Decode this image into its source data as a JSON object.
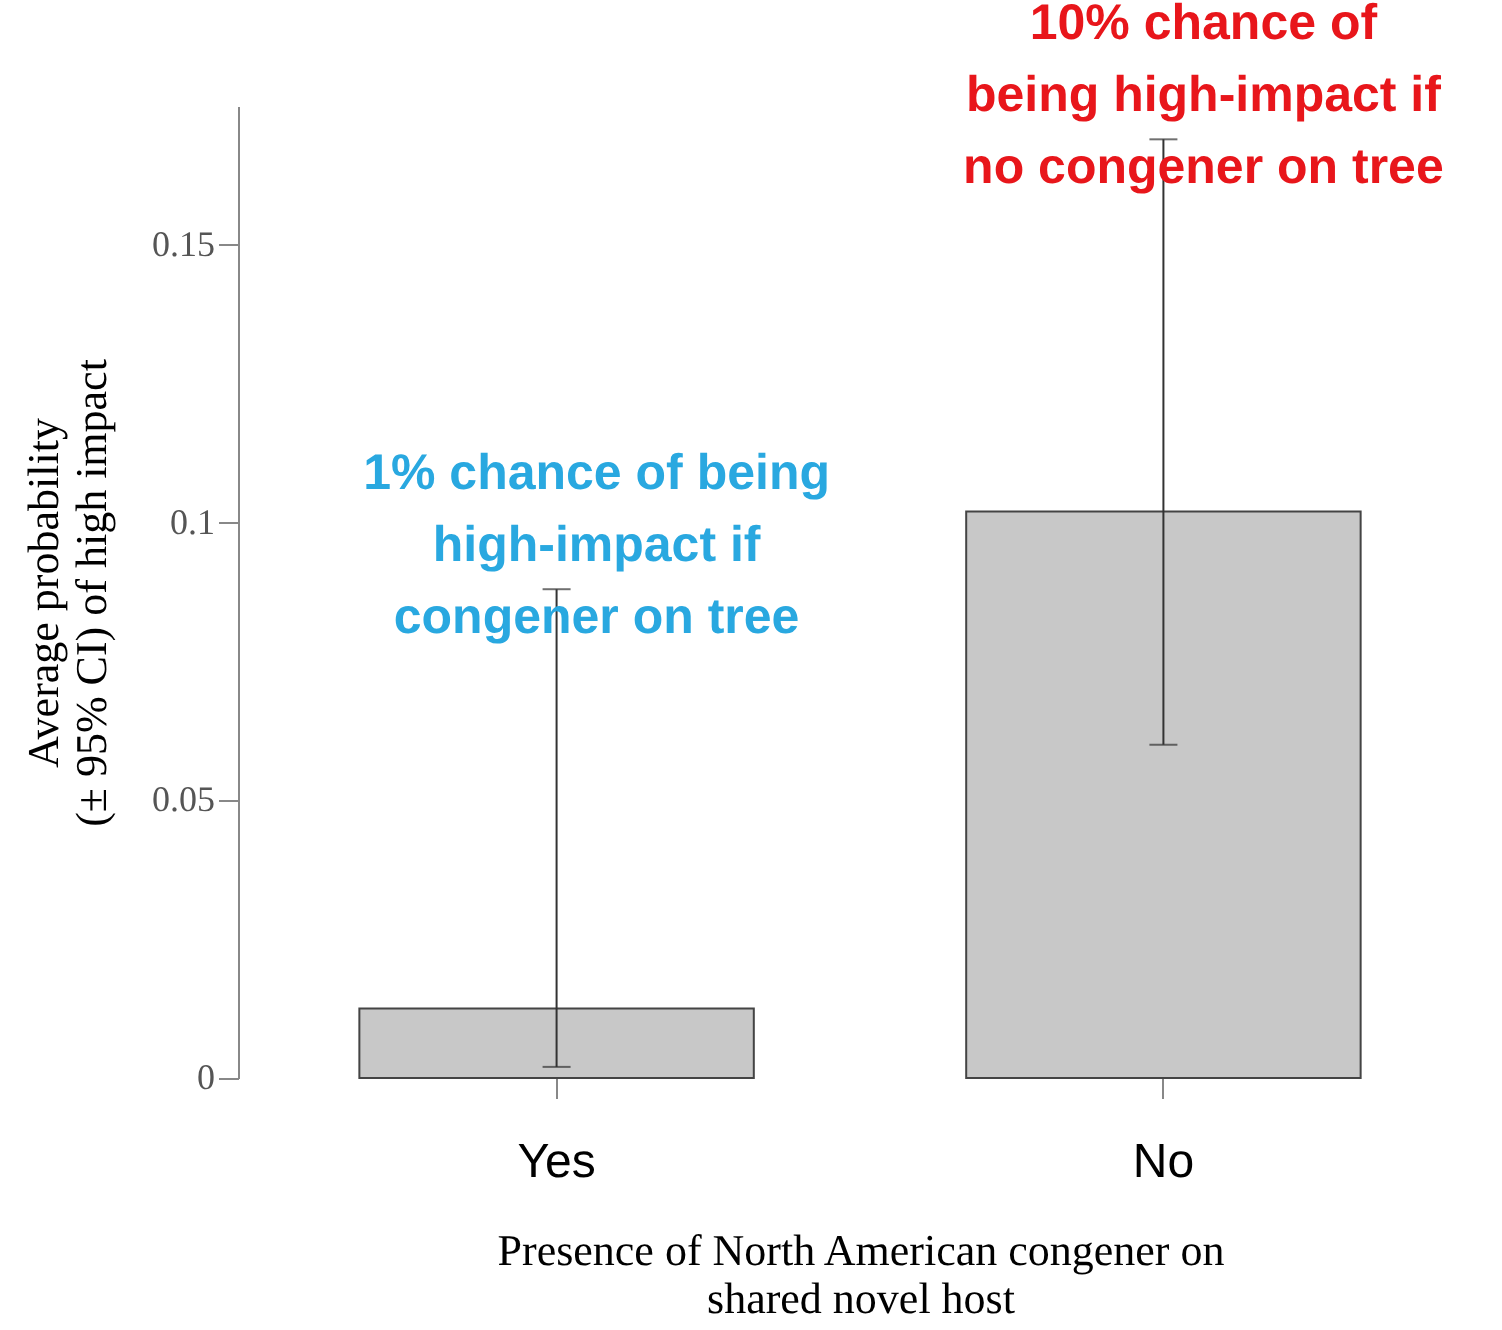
{
  "chart_data": {
    "type": "bar",
    "categories": [
      "Yes",
      "No"
    ],
    "values": [
      0.0125,
      0.102
    ],
    "errors": [
      [
        0.002,
        0.088
      ],
      [
        0.06,
        0.169
      ]
    ],
    "color": "#c8c8c8",
    "xlabel": "Presence of North American congener on\nshared novel host",
    "ylabel": "Average probability\n(± 95% CI) of high impact",
    "ylim": [
      0,
      0.175
    ],
    "yticks": [
      0,
      0.05,
      0.1,
      0.15
    ],
    "grid": false,
    "annotations": [
      {
        "text": "1% chance of being\nhigh-impact if\ncongener on  tree",
        "x": "Yes",
        "y": 0.088
      },
      {
        "text": "10% chance of\nbeing high-impact if\nno congener on tree",
        "x": "No",
        "y": 0.169
      }
    ]
  }
}
